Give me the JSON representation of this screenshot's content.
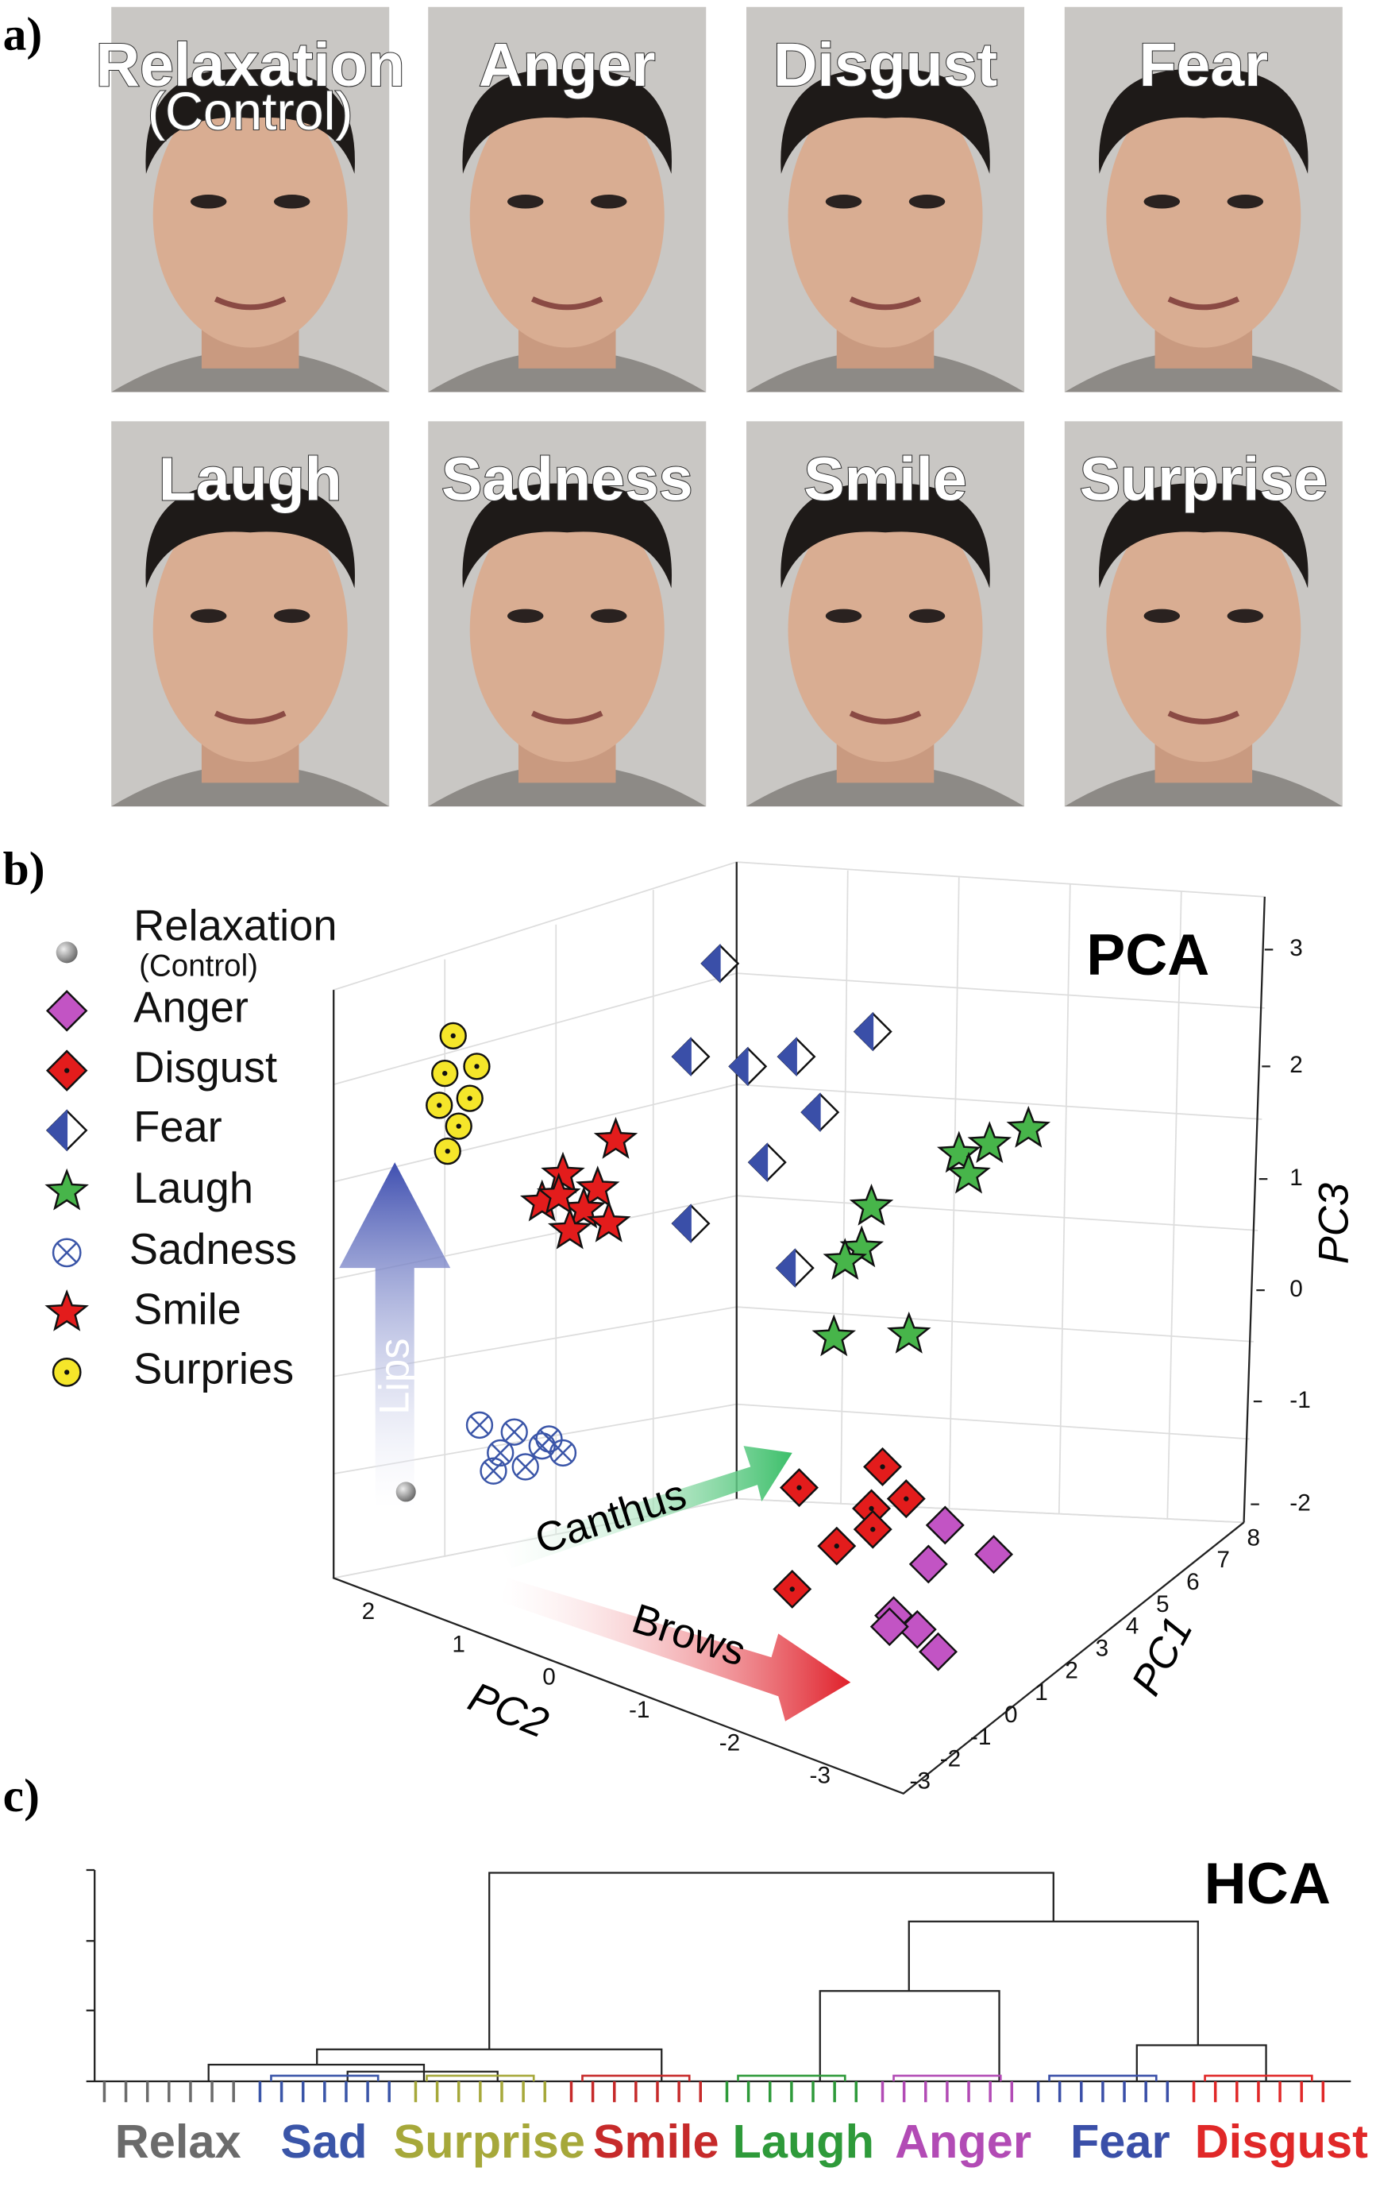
{
  "panel_a": {
    "label": "a)",
    "faces": [
      "Relaxation",
      "Anger",
      "Disgust",
      "Fear",
      "Laugh",
      "Sadness",
      "Smile",
      "Surprise"
    ],
    "control": "(Control)"
  },
  "panel_b": {
    "label": "b)",
    "title": "PCA",
    "legend": [
      {
        "name": "Relaxation",
        "sub": "(Control)"
      },
      {
        "name": "Anger"
      },
      {
        "name": "Disgust"
      },
      {
        "name": "Fear"
      },
      {
        "name": "Laugh"
      },
      {
        "name": "Sadness"
      },
      {
        "name": "Smile"
      },
      {
        "name": "Surpries"
      }
    ],
    "pc3_label": "PC3",
    "pc2_label": "PC2",
    "pc1_label": "PC1",
    "pc3_ticks": [
      "3",
      "2",
      "1",
      "0",
      "-1",
      "-2"
    ],
    "pc2_ticks": [
      "2",
      "1",
      "0",
      "-1",
      "-2",
      "-3"
    ],
    "pc1_ticks": [
      "8",
      "7",
      "6",
      "5",
      "4",
      "3",
      "2",
      "1",
      "0",
      "-1",
      "-2",
      "-3"
    ],
    "arrows": [
      "Lips",
      "Canthus",
      "Brows"
    ]
  },
  "panel_c": {
    "label": "c)",
    "title": "HCA",
    "groups": [
      {
        "name": "Relax",
        "color": "#6b6b6b"
      },
      {
        "name": "Sad",
        "color": "#3a55a8"
      },
      {
        "name": "Surprise",
        "color": "#a6a83a"
      },
      {
        "name": "Smile",
        "color": "#c62a2a"
      },
      {
        "name": "Laugh",
        "color": "#2e9a3a"
      },
      {
        "name": "Anger",
        "color": "#b24bb5"
      },
      {
        "name": "Fear",
        "color": "#3a4fa8"
      },
      {
        "name": "Disgust",
        "color": "#e02828"
      }
    ]
  }
}
